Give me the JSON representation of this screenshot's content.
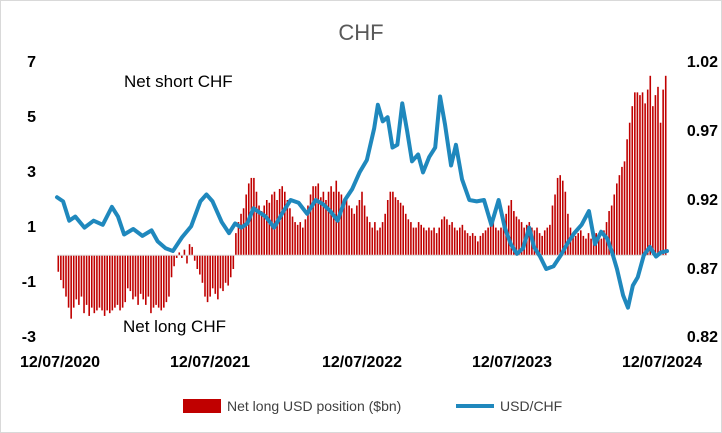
{
  "chart_data": {
    "type": "bar+line",
    "title": "CHF",
    "annotations": [
      "Net short CHF",
      "Net long CHF"
    ],
    "x_tick_labels": [
      "12/07/2020",
      "12/07/2021",
      "12/07/2022",
      "12/07/2023",
      "12/07/2024"
    ],
    "y_left": {
      "range": [
        -3,
        7
      ],
      "ticks": [
        "7",
        "5",
        "3",
        "1",
        "-1",
        "-3"
      ]
    },
    "y_right": {
      "range": [
        0.82,
        1.02
      ],
      "ticks": [
        "1.02",
        "0.97",
        "0.92",
        "0.87",
        "0.82"
      ]
    },
    "legend": {
      "placement": "bottom",
      "entries": [
        "Net long USD position ($bn)",
        "USD/CHF"
      ]
    },
    "colors": {
      "bars": "#c00000",
      "line": "#1f88bd",
      "title": "#595959"
    },
    "series": [
      {
        "name": "Net long USD position ($bn)",
        "axis": "left",
        "values": [
          -0.6,
          -0.9,
          -1.2,
          -1.5,
          -1.9,
          -2.3,
          -1.9,
          -1.6,
          -1.8,
          -1.5,
          -2.1,
          -1.8,
          -2.2,
          -1.9,
          -2.1,
          -2.0,
          -1.9,
          -2.0,
          -2.2,
          -2.0,
          -2.1,
          -2.0,
          -1.9,
          -1.8,
          -2.0,
          -1.9,
          -1.7,
          -1.2,
          -1.3,
          -1.6,
          -1.5,
          -1.8,
          -1.4,
          -1.6,
          -1.8,
          -1.5,
          -2.1,
          -1.9,
          -1.8,
          -1.9,
          -2.0,
          -1.9,
          -1.7,
          -1.5,
          -0.8,
          -0.4,
          -0.1,
          0.1,
          -0.1,
          0.2,
          -0.3,
          0.4,
          0.3,
          -0.2,
          -0.5,
          -0.7,
          -1.0,
          -1.5,
          -1.7,
          -1.5,
          -1.2,
          -1.4,
          -1.6,
          -1.2,
          -1.3,
          -1.0,
          -1.1,
          -0.8,
          -0.5,
          0.8,
          1.2,
          1.5,
          1.7,
          2.2,
          2.6,
          2.8,
          2.8,
          2.3,
          1.8,
          1.6,
          1.8,
          2.0,
          1.9,
          2.2,
          2.3,
          2.0,
          2.4,
          2.5,
          2.3,
          2.0,
          1.7,
          1.4,
          1.2,
          1.1,
          1.2,
          1.0,
          1.3,
          1.8,
          2.2,
          2.5,
          2.5,
          2.6,
          2.1,
          2.3,
          2.0,
          2.3,
          2.5,
          2.3,
          2.7,
          2.3,
          2.2,
          1.9,
          2.0,
          1.8,
          1.7,
          1.5,
          1.8,
          2.0,
          2.3,
          1.8,
          1.4,
          1.2,
          1.0,
          1.2,
          0.9,
          1.0,
          1.2,
          1.5,
          2.0,
          2.3,
          2.3,
          2.1,
          2.0,
          1.9,
          1.8,
          1.5,
          1.3,
          1.2,
          1.0,
          1.0,
          1.2,
          1.1,
          1.0,
          0.9,
          1.0,
          0.9,
          1.0,
          0.8,
          1.0,
          1.3,
          1.4,
          1.3,
          1.1,
          1.2,
          1.0,
          0.9,
          1.0,
          1.1,
          0.9,
          0.8,
          0.7,
          0.8,
          0.7,
          0.5,
          0.7,
          0.8,
          0.9,
          1.0,
          1.1,
          1.2,
          1.0,
          0.9,
          1.0,
          1.3,
          1.5,
          1.8,
          2.0,
          1.6,
          1.4,
          1.3,
          1.2,
          1.0,
          1.1,
          1.2,
          1.0,
          0.9,
          1.0,
          0.8,
          0.7,
          0.9,
          1.0,
          1.1,
          1.8,
          2.2,
          2.8,
          2.9,
          2.7,
          2.3,
          1.5,
          1.0,
          0.8,
          0.7,
          0.8,
          0.9,
          0.7,
          0.6,
          0.8,
          0.6,
          0.7,
          0.8,
          0.7,
          0.6,
          0.9,
          1.2,
          1.6,
          1.8,
          2.2,
          2.6,
          2.9,
          3.2,
          3.4,
          4.2,
          4.8,
          5.4,
          5.9,
          5.9,
          5.8,
          5.9,
          5.5,
          6.0,
          6.5,
          5.4,
          5.8,
          6.1,
          4.8,
          6.0,
          6.5
        ]
      },
      {
        "name": "USD/CHF",
        "axis": "right",
        "points": [
          [
            0.0,
            0.922
          ],
          [
            0.01,
            0.919
          ],
          [
            0.02,
            0.905
          ],
          [
            0.03,
            0.908
          ],
          [
            0.045,
            0.9
          ],
          [
            0.06,
            0.905
          ],
          [
            0.075,
            0.902
          ],
          [
            0.09,
            0.915
          ],
          [
            0.1,
            0.908
          ],
          [
            0.11,
            0.895
          ],
          [
            0.125,
            0.899
          ],
          [
            0.14,
            0.894
          ],
          [
            0.155,
            0.898
          ],
          [
            0.165,
            0.89
          ],
          [
            0.178,
            0.885
          ],
          [
            0.19,
            0.883
          ],
          [
            0.205,
            0.893
          ],
          [
            0.22,
            0.901
          ],
          [
            0.235,
            0.919
          ],
          [
            0.245,
            0.924
          ],
          [
            0.255,
            0.919
          ],
          [
            0.27,
            0.904
          ],
          [
            0.282,
            0.896
          ],
          [
            0.292,
            0.903
          ],
          [
            0.302,
            0.9
          ],
          [
            0.312,
            0.903
          ],
          [
            0.322,
            0.914
          ],
          [
            0.332,
            0.911
          ],
          [
            0.342,
            0.908
          ],
          [
            0.356,
            0.9
          ],
          [
            0.37,
            0.911
          ],
          [
            0.383,
            0.92
          ],
          [
            0.396,
            0.918
          ],
          [
            0.41,
            0.91
          ],
          [
            0.424,
            0.92
          ],
          [
            0.436,
            0.917
          ],
          [
            0.448,
            0.912
          ],
          [
            0.46,
            0.905
          ],
          [
            0.472,
            0.92
          ],
          [
            0.484,
            0.928
          ],
          [
            0.496,
            0.94
          ],
          [
            0.508,
            0.949
          ],
          [
            0.52,
            0.972
          ],
          [
            0.526,
            0.989
          ],
          [
            0.534,
            0.977
          ],
          [
            0.542,
            0.98
          ],
          [
            0.55,
            0.958
          ],
          [
            0.558,
            0.96
          ],
          [
            0.566,
            0.99
          ],
          [
            0.574,
            0.97
          ],
          [
            0.582,
            0.948
          ],
          [
            0.592,
            0.953
          ],
          [
            0.6,
            0.94
          ],
          [
            0.61,
            0.951
          ],
          [
            0.62,
            0.958
          ],
          [
            0.628,
            0.995
          ],
          [
            0.636,
            0.975
          ],
          [
            0.646,
            0.945
          ],
          [
            0.654,
            0.96
          ],
          [
            0.664,
            0.935
          ],
          [
            0.676,
            0.92
          ],
          [
            0.688,
            0.919
          ],
          [
            0.7,
            0.92
          ],
          [
            0.712,
            0.902
          ],
          [
            0.724,
            0.92
          ],
          [
            0.734,
            0.9
          ],
          [
            0.744,
            0.888
          ],
          [
            0.754,
            0.881
          ],
          [
            0.764,
            0.885
          ],
          [
            0.774,
            0.9
          ],
          [
            0.782,
            0.886
          ],
          [
            0.792,
            0.879
          ],
          [
            0.802,
            0.87
          ],
          [
            0.814,
            0.872
          ],
          [
            0.826,
            0.88
          ],
          [
            0.836,
            0.888
          ],
          [
            0.848,
            0.896
          ],
          [
            0.86,
            0.902
          ],
          [
            0.872,
            0.912
          ],
          [
            0.882,
            0.888
          ],
          [
            0.892,
            0.897
          ],
          [
            0.902,
            0.892
          ],
          [
            0.91,
            0.882
          ],
          [
            0.918,
            0.87
          ],
          [
            0.928,
            0.851
          ],
          [
            0.936,
            0.842
          ],
          [
            0.944,
            0.858
          ],
          [
            0.952,
            0.864
          ],
          [
            0.962,
            0.88
          ],
          [
            0.972,
            0.886
          ],
          [
            0.982,
            0.879
          ],
          [
            0.99,
            0.882
          ],
          [
            1.0,
            0.883
          ]
        ]
      }
    ]
  }
}
